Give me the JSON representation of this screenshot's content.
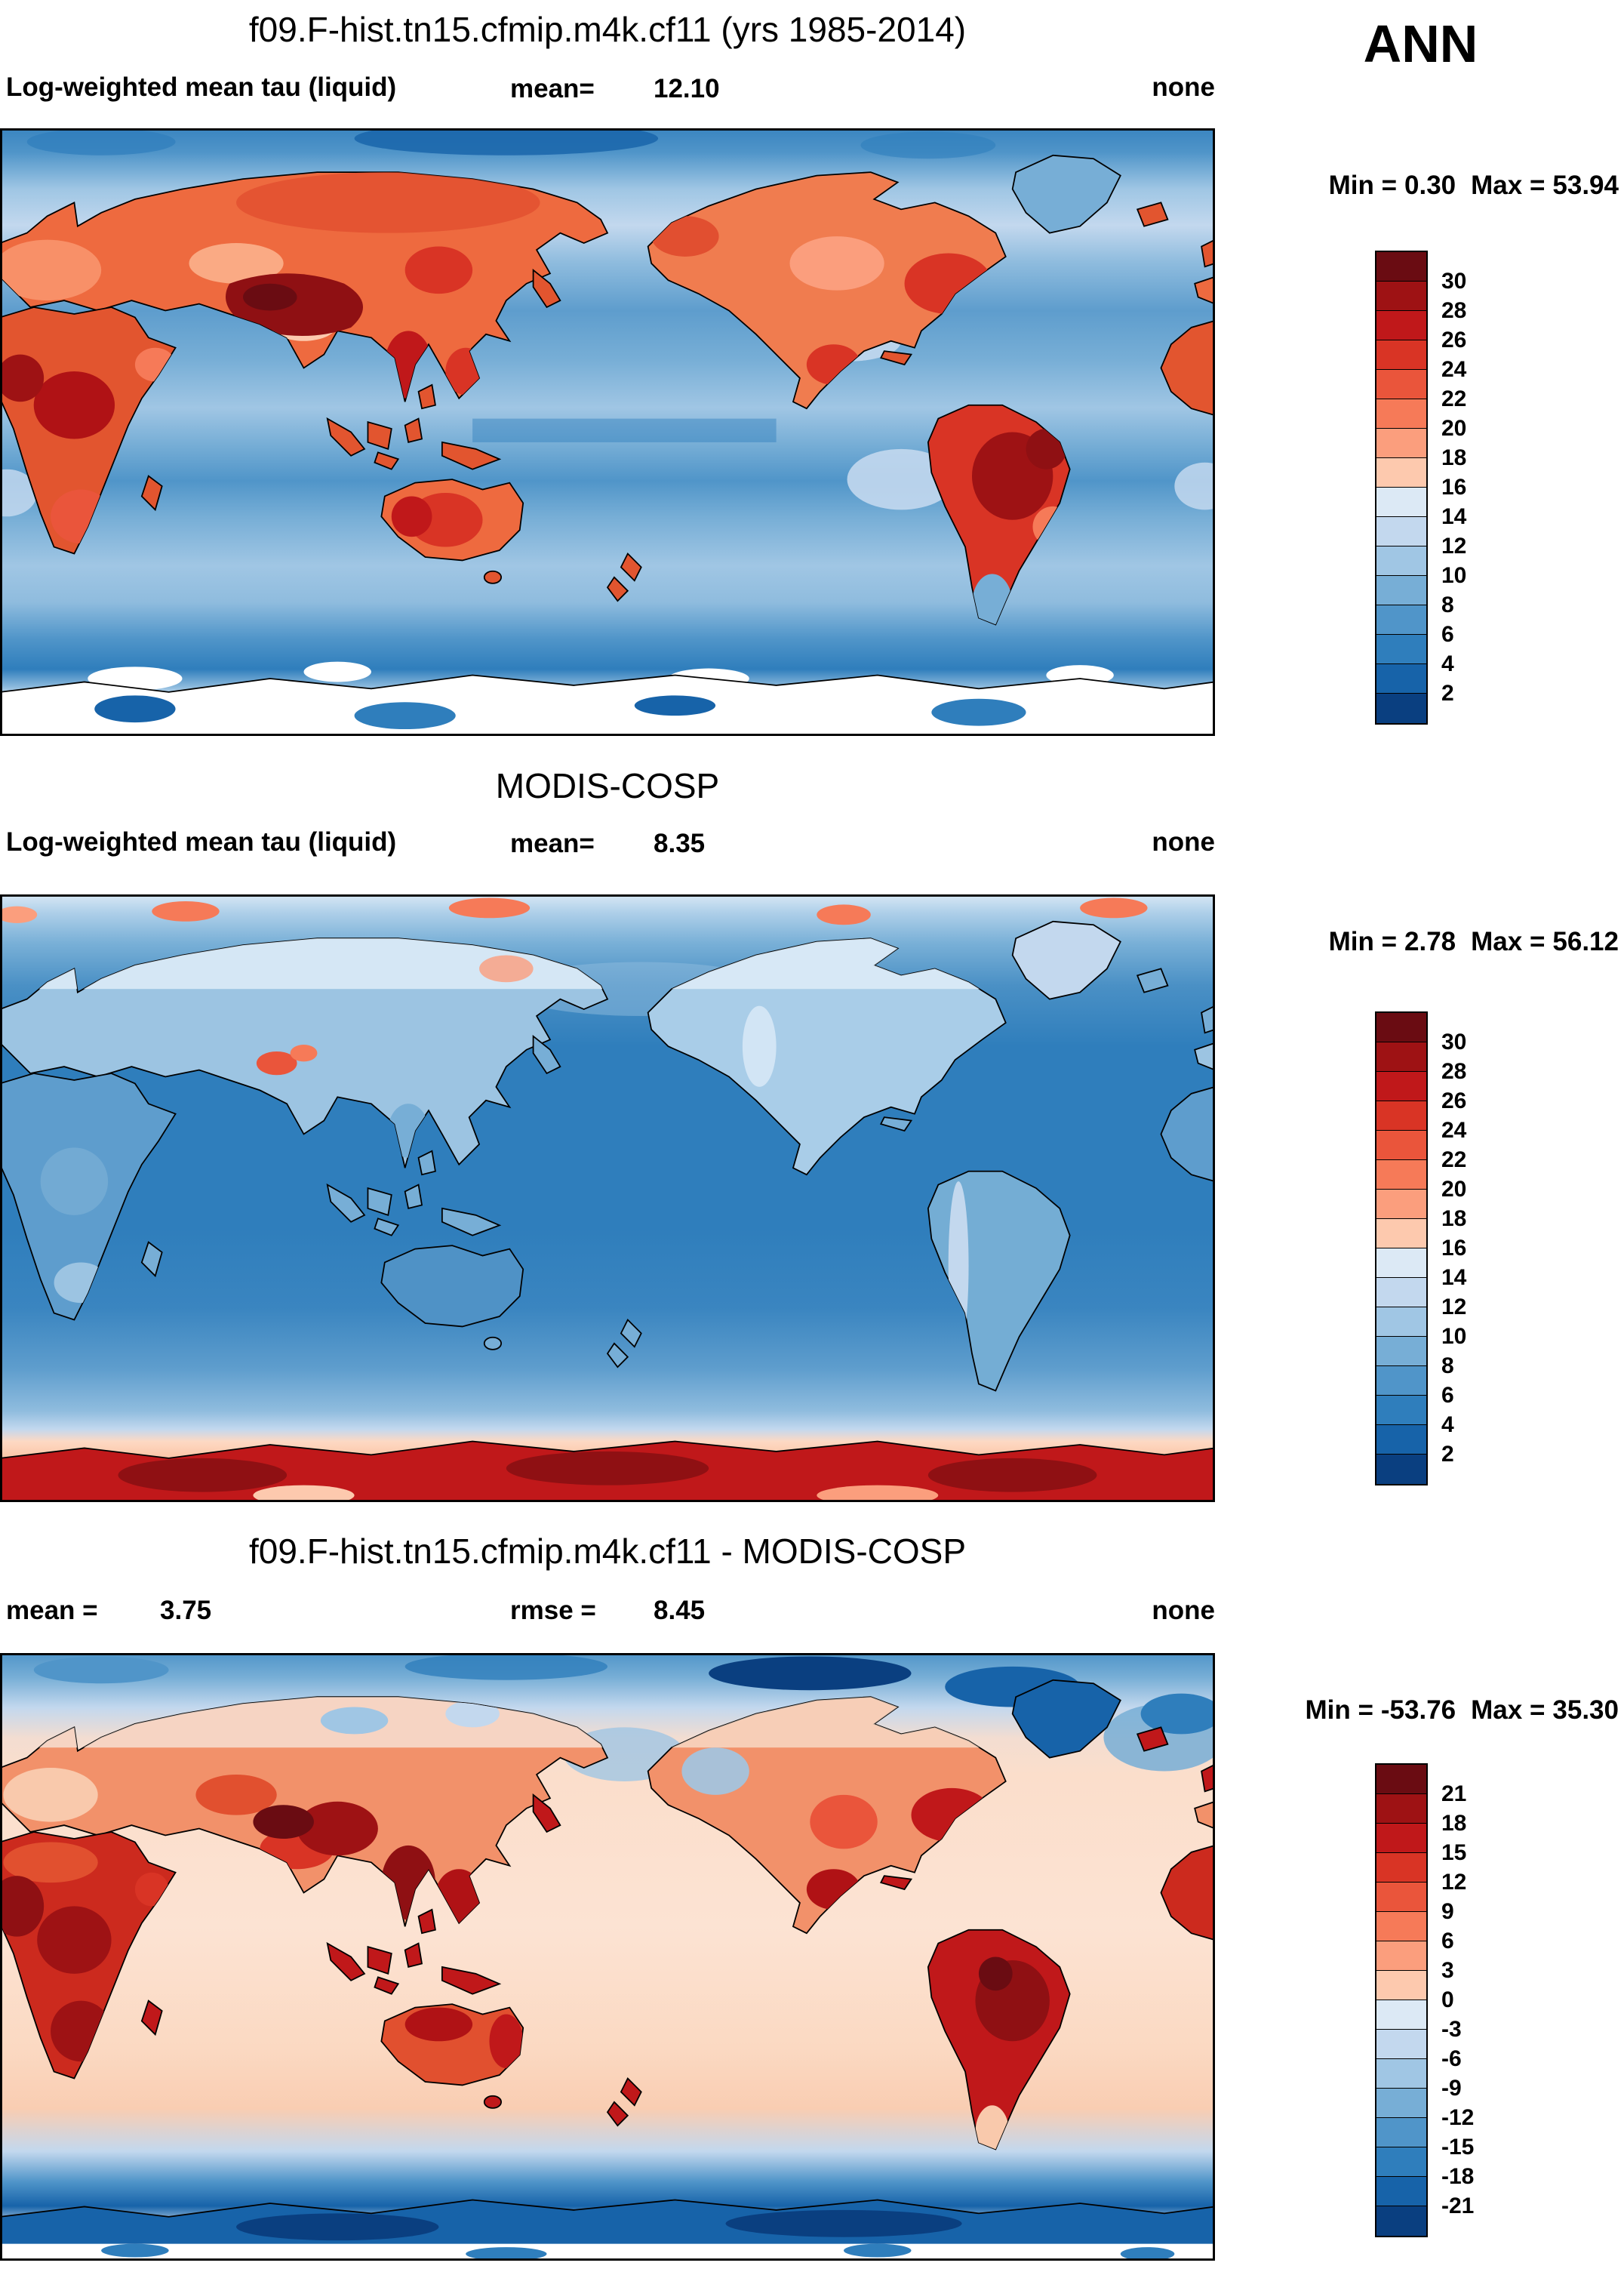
{
  "figure": {
    "season_label": "ANN"
  },
  "panels": [
    {
      "id": "model",
      "title": "f09.F-hist.tn15.cfmip.m4k.cf11 (yrs 1985-2014)",
      "variable_label": "Log-weighted mean tau (liquid)",
      "stats": [
        {
          "label": "mean=",
          "value": "12.10"
        }
      ],
      "units_label": "none",
      "min_label": "Min =",
      "min_value": "0.30",
      "max_label": "Max =",
      "max_value": "53.94",
      "colorbar": {
        "ticks": [
          "30",
          "28",
          "26",
          "24",
          "22",
          "20",
          "18",
          "16",
          "14",
          "12",
          "10",
          "8",
          "6",
          "4",
          "2"
        ],
        "colors": [
          "#6a0c12",
          "#9e1214",
          "#c0181a",
          "#d93425",
          "#ea553b",
          "#f67a58",
          "#fb9e7d",
          "#fdc9ae",
          "#dce9f5",
          "#c3d8ee",
          "#a0c6e4",
          "#77aed6",
          "#5095c9",
          "#2f7ebc",
          "#1763a9",
          "#0a3f80"
        ]
      }
    },
    {
      "id": "obs",
      "title": "MODIS-COSP",
      "variable_label": "Log-weighted mean tau (liquid)",
      "stats": [
        {
          "label": "mean=",
          "value": "8.35"
        }
      ],
      "units_label": "none",
      "min_label": "Min =",
      "min_value": "2.78",
      "max_label": "Max =",
      "max_value": "56.12",
      "colorbar": {
        "ticks": [
          "30",
          "28",
          "26",
          "24",
          "22",
          "20",
          "18",
          "16",
          "14",
          "12",
          "10",
          "8",
          "6",
          "4",
          "2"
        ],
        "colors": [
          "#6a0c12",
          "#9e1214",
          "#c0181a",
          "#d93425",
          "#ea553b",
          "#f67a58",
          "#fb9e7d",
          "#fdc9ae",
          "#dce9f5",
          "#c3d8ee",
          "#a0c6e4",
          "#77aed6",
          "#5095c9",
          "#2f7ebc",
          "#1763a9",
          "#0a3f80"
        ]
      }
    },
    {
      "id": "diff",
      "title": "f09.F-hist.tn15.cfmip.m4k.cf11 - MODIS-COSP",
      "stats": [
        {
          "label": "mean =",
          "value": "3.75"
        },
        {
          "label": "rmse =",
          "value": "8.45"
        }
      ],
      "units_label": "none",
      "min_label": "Min =",
      "min_value": "-53.76",
      "max_label": "Max =",
      "max_value": "35.30",
      "colorbar": {
        "ticks": [
          "21",
          "18",
          "15",
          "12",
          "9",
          "6",
          "3",
          "0",
          "-3",
          "-6",
          "-9",
          "-12",
          "-15",
          "-18",
          "-21"
        ],
        "colors": [
          "#6a0c12",
          "#9e1214",
          "#c0181a",
          "#d93425",
          "#ea553b",
          "#f67a58",
          "#fb9e7d",
          "#fdc9ae",
          "#dce9f5",
          "#c3d8ee",
          "#a0c6e4",
          "#77aed6",
          "#5095c9",
          "#2f7ebc",
          "#1763a9",
          "#0a3f80"
        ]
      }
    }
  ],
  "chart_data": [
    {
      "type": "heatmap",
      "subtype": "filled-contour-global-map",
      "title": "f09.F-hist.tn15.cfmip.m4k.cf11 (yrs 1985-2014)",
      "variable": "Log-weighted mean tau (liquid)",
      "season": "ANN",
      "units": "none",
      "mean": 12.1,
      "min": 0.3,
      "max": 53.94,
      "contour_levels": [
        2,
        4,
        6,
        8,
        10,
        12,
        14,
        16,
        18,
        20,
        22,
        24,
        26,
        28,
        30
      ],
      "palette_top_to_bottom": [
        "#6a0c12",
        "#9e1214",
        "#c0181a",
        "#d93425",
        "#ea553b",
        "#f67a58",
        "#fb9e7d",
        "#fdc9ae",
        "#dce9f5",
        "#c3d8ee",
        "#a0c6e4",
        "#77aed6",
        "#5095c9",
        "#2f7ebc",
        "#1763a9",
        "#0a3f80"
      ],
      "legend_position": "right",
      "notes": "High tau (red) over tropical and NH continents (Tibet/China darkest), blue oceans, white missing-data patches near Antarctica"
    },
    {
      "type": "heatmap",
      "subtype": "filled-contour-global-map",
      "title": "MODIS-COSP",
      "variable": "Log-weighted mean tau (liquid)",
      "season": "ANN",
      "units": "none",
      "mean": 8.35,
      "min": 2.78,
      "max": 56.12,
      "contour_levels": [
        2,
        4,
        6,
        8,
        10,
        12,
        14,
        16,
        18,
        20,
        22,
        24,
        26,
        28,
        30
      ],
      "palette_top_to_bottom": [
        "#6a0c12",
        "#9e1214",
        "#c0181a",
        "#d93425",
        "#ea553b",
        "#f67a58",
        "#fb9e7d",
        "#fdc9ae",
        "#dce9f5",
        "#c3d8ee",
        "#a0c6e4",
        "#77aed6",
        "#5095c9",
        "#2f7ebc",
        "#1763a9",
        "#0a3f80"
      ],
      "legend_position": "right",
      "notes": "Mostly blue (low tau) globally, pale high-latitude band in north, dark red maximum band over Antarctica"
    },
    {
      "type": "heatmap",
      "subtype": "filled-contour-global-map-difference",
      "title": "f09.F-hist.tn15.cfmip.m4k.cf11 - MODIS-COSP",
      "season": "ANN",
      "units": "none",
      "mean": 3.75,
      "rmse": 8.45,
      "min": -53.76,
      "max": 35.3,
      "contour_levels": [
        -21,
        -18,
        -15,
        -12,
        -9,
        -6,
        -3,
        0,
        3,
        6,
        9,
        12,
        15,
        18,
        21
      ],
      "palette_top_to_bottom": [
        "#6a0c12",
        "#9e1214",
        "#c0181a",
        "#d93425",
        "#ea553b",
        "#f67a58",
        "#fb9e7d",
        "#fdc9ae",
        "#dce9f5",
        "#c3d8ee",
        "#a0c6e4",
        "#77aed6",
        "#5095c9",
        "#2f7ebc",
        "#1763a9",
        "#0a3f80"
      ],
      "legend_position": "right",
      "notes": "Positive (red) bias over most oceans and tropical land, negative (blue) over Arctic, Greenland and Antarctic band"
    }
  ]
}
